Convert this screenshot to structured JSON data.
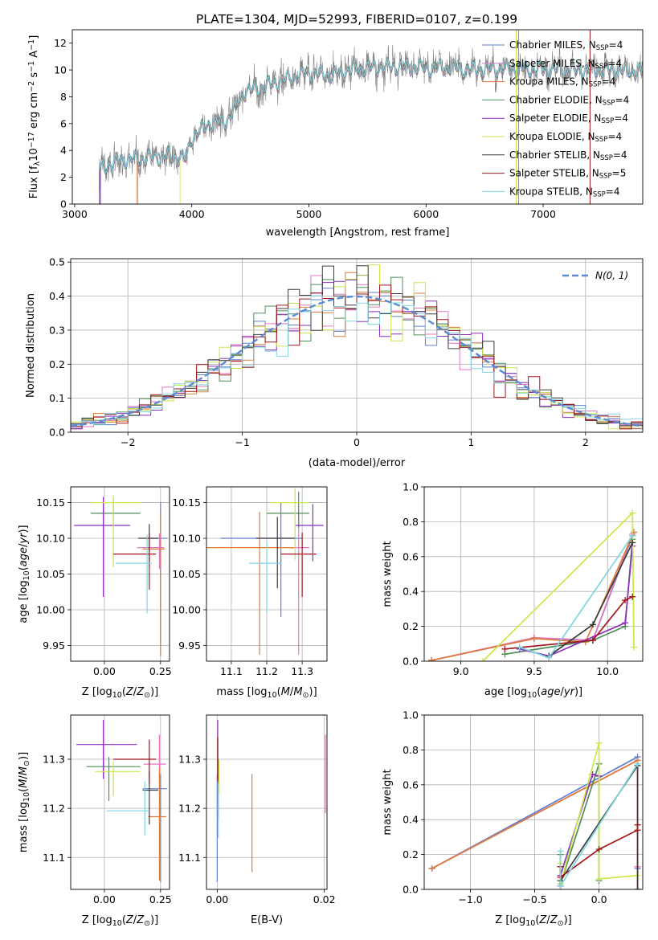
{
  "title": "PLATE=1304, MJD=52993, FIBERID=0107, z=0.199",
  "series_legend": [
    {
      "name": "Chabrier MILES, N",
      "sub": "SSP",
      "suffix": "=4",
      "color": "#5f7fd1"
    },
    {
      "name": "Salpeter MILES, N",
      "sub": "SSP",
      "suffix": "=4",
      "color": "#e377c2"
    },
    {
      "name": "Kroupa MILES, N",
      "sub": "SSP",
      "suffix": "=4",
      "color": "#e07b39"
    },
    {
      "name": "Chabrier ELODIE, N",
      "sub": "SSP",
      "suffix": "=4",
      "color": "#4e8f57"
    },
    {
      "name": "Salpeter ELODIE, N",
      "sub": "SSP",
      "suffix": "=4",
      "color": "#8e2fbe"
    },
    {
      "name": "Kroupa ELODIE, N",
      "sub": "SSP",
      "suffix": "=4",
      "color": "#c8e84a"
    },
    {
      "name": "Chabrier STELIB, N",
      "sub": "SSP",
      "suffix": "=4",
      "color": "#3c3c3c"
    },
    {
      "name": "Salpeter STELIB, N",
      "sub": "SSP",
      "suffix": "=5",
      "color": "#a3161c"
    },
    {
      "name": "Kroupa STELIB, N",
      "sub": "SSP",
      "suffix": "=4",
      "color": "#7ed4e0"
    }
  ],
  "chart_data": [
    {
      "id": "spectrum",
      "type": "line",
      "xlabel": "wavelength [Angstrom, rest frame]",
      "ylabel": "Flux [fλ10⁻¹⁷ erg cm⁻² s⁻¹ A⁻¹]",
      "xlim": [
        2980,
        7850
      ],
      "ylim": [
        0,
        13
      ],
      "xticks": [
        3000,
        4000,
        5000,
        6000,
        7000
      ],
      "yticks": [
        0,
        2,
        4,
        6,
        8,
        10,
        12
      ],
      "data_color": "#808080",
      "model_color": "#7ed4e0",
      "continuum": [
        [
          3210,
          2.7
        ],
        [
          3400,
          3.3
        ],
        [
          3600,
          3.4
        ],
        [
          3800,
          3.6
        ],
        [
          3950,
          3.4
        ],
        [
          4000,
          5.0
        ],
        [
          4150,
          6.0
        ],
        [
          4300,
          6.2
        ],
        [
          4450,
          8.4
        ],
        [
          4600,
          8.7
        ],
        [
          4800,
          9.3
        ],
        [
          5000,
          9.8
        ],
        [
          5200,
          9.6
        ],
        [
          5400,
          10.1
        ],
        [
          5600,
          10.2
        ],
        [
          5800,
          10.3
        ],
        [
          6000,
          10.1
        ],
        [
          6200,
          10.2
        ],
        [
          6400,
          10.0
        ],
        [
          6600,
          10.1
        ],
        [
          6800,
          10.1
        ],
        [
          7000,
          10.0
        ],
        [
          7200,
          10.0
        ],
        [
          7400,
          10.0
        ],
        [
          7800,
          9.9
        ]
      ],
      "model_start_x": [
        3210,
        3540,
        3530,
        3220,
        3215,
        3900,
        3210,
        3210,
        3210
      ],
      "end_lines": [
        {
          "x": 6770,
          "color": "#c8e84a"
        },
        {
          "x": 6790,
          "color": "#e07b39"
        },
        {
          "x": 7400,
          "color": "#a3161c"
        }
      ]
    },
    {
      "id": "residuals",
      "type": "histogram",
      "xlabel": "(data-model)/error",
      "ylabel": "Normed distribution",
      "xlim": [
        -2.5,
        2.5
      ],
      "ylim": [
        0,
        0.51
      ],
      "xticks": [
        -2,
        -1,
        0,
        1,
        2
      ],
      "yticks": [
        0.0,
        0.1,
        0.2,
        0.3,
        0.4,
        0.5
      ],
      "bin_width": 0.1,
      "gaussian_label": "N(0, 1)",
      "gaussian_color": "#5b8bd0",
      "legend_position": "upper right"
    },
    {
      "id": "age-vs-Z",
      "type": "scatter",
      "xlabel": "Z [log10(Z/Z⊙)]",
      "ylabel": "age  [log10(age/yr)]",
      "xlim": [
        -0.15,
        0.29
      ],
      "ylim": [
        9.928,
        10.172
      ],
      "xticks": [
        0.0,
        0.25
      ],
      "yticks": [
        9.95,
        10.0,
        10.05,
        10.1,
        10.15
      ],
      "points": [
        {
          "x": 0.25,
          "y": 10.1,
          "xerr": [
            0.07,
            0.03
          ],
          "yerr": [
            0.15,
            0.05
          ]
        },
        {
          "x": 0.245,
          "y": 10.087,
          "xerr": [
            0.1,
            0.02
          ],
          "yerr": [
            0.03,
            0.02
          ]
        },
        {
          "x": 0.25,
          "y": 10.085,
          "xerr": [
            0.08,
            0.02
          ],
          "yerr": [
            0.15,
            0.05
          ]
        },
        {
          "x": 0.04,
          "y": 10.135,
          "xerr": [
            0.1,
            0.12
          ],
          "yerr": [
            0.02,
            0.02
          ]
        },
        {
          "x": -0.005,
          "y": 10.118,
          "xerr": [
            0.13,
            0.12
          ],
          "yerr": [
            0.1,
            0.04
          ]
        },
        {
          "x": 0.04,
          "y": 10.15,
          "xerr": [
            0.1,
            0.12
          ],
          "yerr": [
            0.09,
            0.01
          ]
        },
        {
          "x": 0.2,
          "y": 10.1,
          "xerr": [
            0.05,
            0.04
          ],
          "yerr": [
            0.04,
            0.02
          ]
        },
        {
          "x": 0.2,
          "y": 10.078,
          "xerr": [
            0.16,
            0.03
          ],
          "yerr": [
            0.05,
            0.03
          ]
        },
        {
          "x": 0.19,
          "y": 10.065,
          "xerr": [
            0.14,
            0.02
          ],
          "yerr": [
            0.07,
            0.04
          ]
        }
      ]
    },
    {
      "id": "age-vs-mass",
      "type": "scatter",
      "xlabel": "mass [log10(M/M⊙)]",
      "ylabel": "",
      "xlim": [
        11.03,
        11.37
      ],
      "ylim": [
        9.928,
        10.172
      ],
      "xticks": [
        11.1,
        11.2,
        11.3
      ],
      "yticks": [
        9.95,
        10.0,
        10.05,
        10.1,
        10.15
      ],
      "points": [
        {
          "x": 11.24,
          "y": 10.1,
          "xerr": [
            0.17,
            0.06
          ],
          "yerr": [
            0.11,
            0.05
          ]
        },
        {
          "x": 11.29,
          "y": 10.087,
          "xerr": [
            0.03,
            0.03
          ],
          "yerr": [
            0.15,
            0.05
          ]
        },
        {
          "x": 11.18,
          "y": 10.087,
          "xerr": [
            0.15,
            0.1
          ],
          "yerr": [
            0.15,
            0.05
          ]
        },
        {
          "x": 11.29,
          "y": 10.135,
          "xerr": [
            0.09,
            0.03
          ],
          "yerr": [
            0.02,
            0.03
          ]
        },
        {
          "x": 11.33,
          "y": 10.118,
          "xerr": [
            0.05,
            0.03
          ],
          "yerr": [
            0.05,
            0.03
          ]
        },
        {
          "x": 11.28,
          "y": 10.15,
          "xerr": [
            0.07,
            0.04
          ],
          "yerr": [
            0.08,
            0.02
          ]
        },
        {
          "x": 11.23,
          "y": 10.1,
          "xerr": [
            0.06,
            0.05
          ],
          "yerr": [
            0.07,
            0.03
          ]
        },
        {
          "x": 11.3,
          "y": 10.078,
          "xerr": [
            0.06,
            0.04
          ],
          "yerr": [
            0.06,
            0.03
          ]
        },
        {
          "x": 11.2,
          "y": 10.065,
          "xerr": [
            0.05,
            0.04
          ],
          "yerr": [
            0.07,
            0.03
          ]
        }
      ]
    },
    {
      "id": "mass-weight-vs-age",
      "type": "line",
      "xlabel": "age  [log10(age/yr)]",
      "ylabel": "mass weight",
      "xlim": [
        8.75,
        10.24
      ],
      "ylim": [
        0,
        1
      ],
      "xticks": [
        9.0,
        9.5,
        10.0
      ],
      "yticks": [
        0.0,
        0.2,
        0.4,
        0.6,
        0.8,
        1.0
      ],
      "series": [
        {
          "x": [
            8.8,
            9.5,
            9.9,
            10.17
          ],
          "y": [
            0.005,
            0.13,
            0.12,
            0.72
          ]
        },
        {
          "x": [
            8.8,
            9.5,
            9.9,
            10.17
          ],
          "y": [
            0.005,
            0.135,
            0.12,
            0.73
          ]
        },
        {
          "x": [
            8.8,
            9.5,
            9.85,
            10.18
          ],
          "y": [
            0.005,
            0.13,
            0.11,
            0.74
          ]
        },
        {
          "x": [
            9.3,
            9.9,
            10.12,
            10.17
          ],
          "y": [
            0.04,
            0.12,
            0.2,
            0.7
          ]
        },
        {
          "x": [
            9.4,
            9.6,
            10.12,
            10.17
          ],
          "y": [
            0.07,
            0.03,
            0.22,
            0.66
          ]
        },
        {
          "x": [
            9.15,
            10.17,
            10.18
          ],
          "y": [
            0.0,
            0.85,
            0.08
          ]
        },
        {
          "x": [
            9.6,
            9.9,
            10.17
          ],
          "y": [
            0.03,
            0.21,
            0.68
          ]
        },
        {
          "x": [
            9.3,
            9.9,
            10.12,
            10.17
          ],
          "y": [
            0.07,
            0.12,
            0.35,
            0.37
          ]
        },
        {
          "x": [
            9.4,
            9.6,
            10.17
          ],
          "y": [
            0.08,
            0.02,
            0.72
          ]
        }
      ]
    },
    {
      "id": "mass-vs-Z",
      "type": "scatter",
      "xlabel": "Z [log10(Z/Z⊙)]",
      "ylabel": "mass [log10(M/M⊙)]",
      "xlim": [
        -0.15,
        0.29
      ],
      "ylim": [
        11.035,
        11.39
      ],
      "xticks": [
        0.0,
        0.25
      ],
      "yticks": [
        11.1,
        11.2,
        11.3
      ],
      "points": [
        {
          "x": 0.25,
          "y": 11.24,
          "xerr": [
            0.08,
            0.03
          ],
          "yerr": [
            0.19,
            0.03
          ]
        },
        {
          "x": 0.245,
          "y": 11.29,
          "xerr": [
            0.07,
            0.03
          ],
          "yerr": [
            0.03,
            0.06
          ]
        },
        {
          "x": 0.245,
          "y": 11.183,
          "xerr": [
            0.05,
            0.03
          ],
          "yerr": [
            0.13,
            0.1
          ]
        },
        {
          "x": 0.02,
          "y": 11.285,
          "xerr": [
            0.1,
            0.14
          ],
          "yerr": [
            0.07,
            0.02
          ]
        },
        {
          "x": -0.005,
          "y": 11.33,
          "xerr": [
            0.12,
            0.15
          ],
          "yerr": [
            0.07,
            0.05
          ]
        },
        {
          "x": 0.04,
          "y": 11.275,
          "xerr": [
            0.08,
            0.12
          ],
          "yerr": [
            0.05,
            0.02
          ]
        },
        {
          "x": 0.2,
          "y": 11.237,
          "xerr": [
            0.03,
            0.04
          ],
          "yerr": [
            0.07,
            0.04
          ]
        },
        {
          "x": 0.2,
          "y": 11.3,
          "xerr": [
            0.16,
            0.03
          ],
          "yerr": [
            0.05,
            0.04
          ]
        },
        {
          "x": 0.18,
          "y": 11.195,
          "xerr": [
            0.17,
            0.02
          ],
          "yerr": [
            0.05,
            0.06
          ]
        }
      ]
    },
    {
      "id": "mass-vs-EBV",
      "type": "scatter",
      "xlabel": "E(B-V)",
      "ylabel": "",
      "xlim": [
        -0.002,
        0.0205
      ],
      "ylim": [
        11.035,
        11.39
      ],
      "xticks": [
        0.0,
        0.02
      ],
      "yticks": [
        11.1,
        11.2,
        11.3
      ],
      "points": [
        {
          "x": 0.0,
          "y": 11.24,
          "xerr": [
            0,
            0
          ],
          "yerr": [
            0.19,
            0.03
          ]
        },
        {
          "x": 0.0202,
          "y": 11.29,
          "xerr": [
            0,
            0
          ],
          "yerr": [
            0.1,
            0.06
          ]
        },
        {
          "x": 0.0065,
          "y": 11.17,
          "xerr": [
            0,
            0
          ],
          "yerr": [
            0.1,
            0.1
          ]
        },
        {
          "x": 0.0002,
          "y": 11.24,
          "xerr": [
            0,
            0
          ],
          "yerr": [
            0.06,
            0.06
          ]
        },
        {
          "x": 0.0001,
          "y": 11.33,
          "xerr": [
            0,
            0
          ],
          "yerr": [
            0.05,
            0.05
          ]
        },
        {
          "x": 0.0003,
          "y": 11.27,
          "xerr": [
            0,
            0
          ],
          "yerr": [
            0.04,
            0.03
          ]
        },
        {
          "x": 0.0001,
          "y": 11.3,
          "xerr": [
            0,
            0
          ],
          "yerr": [
            0.04,
            0.04
          ]
        },
        {
          "x": 0.0001,
          "y": 11.3,
          "xerr": [
            0,
            0
          ],
          "yerr": [
            0.045,
            0.045
          ]
        },
        {
          "x": 0.0002,
          "y": 11.19,
          "xerr": [
            0,
            0
          ],
          "yerr": [
            0.05,
            0.06
          ]
        }
      ]
    },
    {
      "id": "mass-weight-vs-Z",
      "type": "line",
      "xlabel": "Z [log10(Z/Z⊙)]",
      "ylabel": "mass weight",
      "xlim": [
        -1.36,
        0.34
      ],
      "ylim": [
        0,
        1
      ],
      "xticks": [
        -1.0,
        -0.5,
        0.0
      ],
      "yticks": [
        0.0,
        0.2,
        0.4,
        0.6,
        0.8,
        1.0
      ],
      "series": [
        {
          "x": [
            -1.3,
            0.3,
            0.3
          ],
          "y": [
            0.12,
            0.76,
            0.12
          ]
        },
        {
          "x": [
            -1.3,
            0.3,
            0.3,
            0.3
          ],
          "y": [
            0.12,
            0.74,
            0.13,
            0.0
          ]
        },
        {
          "x": [
            -1.3,
            0.3,
            0.3
          ],
          "y": [
            0.12,
            0.74,
            0.0
          ]
        },
        {
          "x": [
            -0.3,
            -0.3,
            0.0,
            0.0
          ],
          "y": [
            0.2,
            0.03,
            0.72,
            0.05
          ]
        },
        {
          "x": [
            -0.3,
            -0.3,
            -0.05,
            0.0
          ],
          "y": [
            0.02,
            0.08,
            0.66,
            0.65
          ]
        },
        {
          "x": [
            -0.3,
            -0.3,
            0.0,
            0.0,
            0.3
          ],
          "y": [
            0.15,
            0.03,
            0.84,
            0.06,
            0.08
          ]
        },
        {
          "x": [
            -0.3,
            -0.3,
            0.3,
            0.3
          ],
          "y": [
            0.02,
            0.05,
            0.71,
            0.0
          ]
        },
        {
          "x": [
            -0.3,
            -0.3,
            0.0,
            0.3,
            0.3
          ],
          "y": [
            0.13,
            0.07,
            0.23,
            0.34,
            0.37
          ]
        },
        {
          "x": [
            -0.3,
            -0.3,
            0.3
          ],
          "y": [
            0.22,
            0.02,
            0.72
          ]
        }
      ]
    }
  ]
}
